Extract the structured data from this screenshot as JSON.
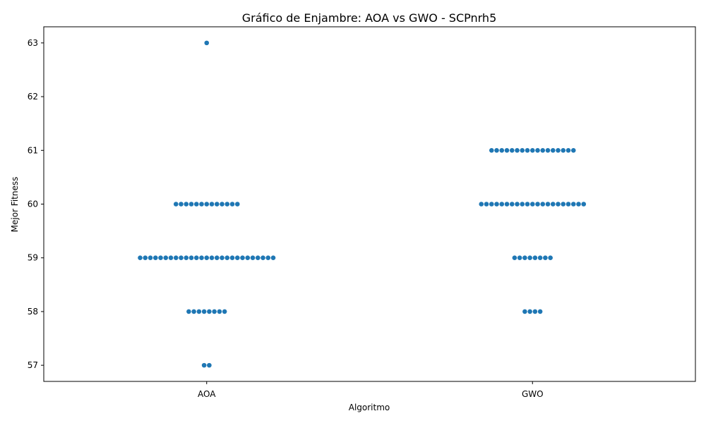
{
  "chart_data": {
    "type": "swarm",
    "title": "Gráfico de Enjambre: AOA vs GWO - SCPnrh5",
    "xlabel": "Algoritmo",
    "ylabel": "Mejor Fitness",
    "categories": [
      "AOA",
      "GWO"
    ],
    "ylim": [
      56.7,
      63.3
    ],
    "yticks": [
      "57",
      "58",
      "59",
      "60",
      "61",
      "62",
      "63"
    ],
    "grid": false,
    "point_color": "#1f77b4",
    "series": [
      {
        "category": "AOA",
        "counts": [
          {
            "value": 57,
            "count": 2
          },
          {
            "value": 58,
            "count": 8
          },
          {
            "value": 59,
            "count": 27
          },
          {
            "value": 60,
            "count": 13
          },
          {
            "value": 63,
            "count": 1
          }
        ]
      },
      {
        "category": "GWO",
        "counts": [
          {
            "value": 58,
            "count": 4
          },
          {
            "value": 59,
            "count": 8
          },
          {
            "value": 60,
            "count": 21
          },
          {
            "value": 61,
            "count": 17
          }
        ]
      }
    ]
  }
}
